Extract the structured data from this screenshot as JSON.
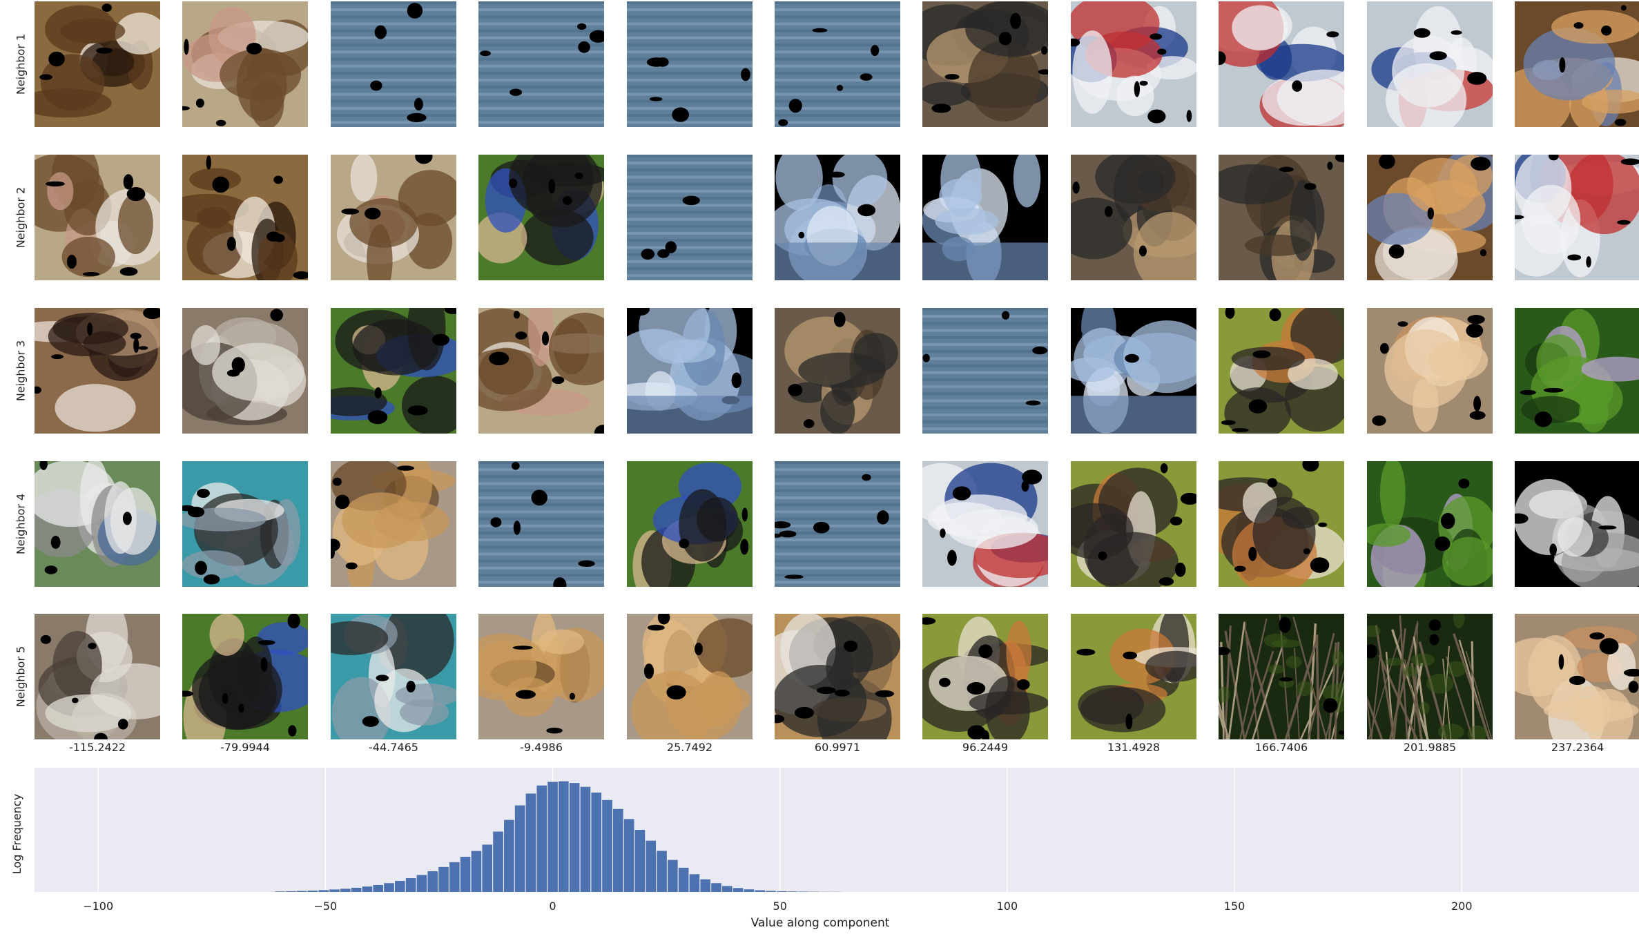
{
  "row_labels": [
    "Neighbor 1",
    "Neighbor 2",
    "Neighbor 3",
    "Neighbor 4",
    "Neighbor 5"
  ],
  "column_values": [
    "-115.2422",
    "-79.9944",
    "-44.7465",
    "-9.4986",
    "25.7492",
    "60.9971",
    "96.2449",
    "131.4928",
    "166.7406",
    "201.9885",
    "237.2364"
  ],
  "image_themes": [
    [
      "dog-brown",
      "dog-fluffy",
      "water",
      "water",
      "water",
      "water",
      "dog-dark",
      "police-car",
      "police-car",
      "police-car",
      "dog-baby"
    ],
    [
      "dog-fluffy",
      "dog-brown",
      "dog-fluffy",
      "dogs-grass",
      "water",
      "sky-mask",
      "sky-mask",
      "dog-dark",
      "dog-dark",
      "dog-baby",
      "police-car"
    ],
    [
      "dog-black",
      "alpaca",
      "dogs-grass",
      "dog-fluffy",
      "sky-mask",
      "dog-dark",
      "water",
      "sky-mask",
      "dogs-pile",
      "fox",
      "plant"
    ],
    [
      "dog-corgi",
      "dog-merle",
      "puppy-golden",
      "water",
      "dogs-grass",
      "water",
      "police-car",
      "dogs-pile",
      "dogs-pile",
      "plant",
      "van"
    ],
    [
      "alpaca",
      "dogs-grass",
      "dog-merle",
      "puppy-golden",
      "puppy-golden",
      "cat-floor",
      "dogs-pile",
      "dogs-pile",
      "branches",
      "branches",
      "fox"
    ]
  ],
  "chart_data": {
    "type": "bar",
    "xlabel": "Value along component",
    "ylabel": "Log Frequency",
    "xlim": [
      -114,
      239
    ],
    "ylim": [
      0,
      1.0
    ],
    "xticks": [
      -100,
      -50,
      0,
      50,
      100,
      150,
      200
    ],
    "grid": true,
    "background": "#eaeaf2",
    "bar_color": "#4c72b0",
    "bins": [
      {
        "x": -60.0,
        "y": 0.004
      },
      {
        "x": -57.6,
        "y": 0.006
      },
      {
        "x": -55.2,
        "y": 0.008
      },
      {
        "x": -52.8,
        "y": 0.011
      },
      {
        "x": -50.4,
        "y": 0.015
      },
      {
        "x": -48.0,
        "y": 0.02
      },
      {
        "x": -45.6,
        "y": 0.026
      },
      {
        "x": -43.2,
        "y": 0.034
      },
      {
        "x": -40.8,
        "y": 0.044
      },
      {
        "x": -38.4,
        "y": 0.056
      },
      {
        "x": -36.0,
        "y": 0.071
      },
      {
        "x": -33.6,
        "y": 0.089
      },
      {
        "x": -31.2,
        "y": 0.111
      },
      {
        "x": -28.8,
        "y": 0.137
      },
      {
        "x": -26.4,
        "y": 0.167
      },
      {
        "x": -24.0,
        "y": 0.201
      },
      {
        "x": -21.6,
        "y": 0.24
      },
      {
        "x": -19.2,
        "y": 0.283
      },
      {
        "x": -16.8,
        "y": 0.33
      },
      {
        "x": -14.4,
        "y": 0.381
      },
      {
        "x": -12.0,
        "y": 0.486
      },
      {
        "x": -9.6,
        "y": 0.58
      },
      {
        "x": -7.2,
        "y": 0.697
      },
      {
        "x": -4.8,
        "y": 0.792
      },
      {
        "x": -2.4,
        "y": 0.857
      },
      {
        "x": 0.0,
        "y": 0.886
      },
      {
        "x": 2.4,
        "y": 0.891
      },
      {
        "x": 4.8,
        "y": 0.877
      },
      {
        "x": 7.2,
        "y": 0.846
      },
      {
        "x": 9.6,
        "y": 0.8
      },
      {
        "x": 12.0,
        "y": 0.74
      },
      {
        "x": 14.4,
        "y": 0.668
      },
      {
        "x": 16.8,
        "y": 0.587
      },
      {
        "x": 19.2,
        "y": 0.5
      },
      {
        "x": 21.6,
        "y": 0.413
      },
      {
        "x": 24.0,
        "y": 0.331
      },
      {
        "x": 26.4,
        "y": 0.258
      },
      {
        "x": 28.8,
        "y": 0.195
      },
      {
        "x": 31.2,
        "y": 0.143
      },
      {
        "x": 33.6,
        "y": 0.102
      },
      {
        "x": 36.0,
        "y": 0.071
      },
      {
        "x": 38.4,
        "y": 0.048
      },
      {
        "x": 40.8,
        "y": 0.032
      },
      {
        "x": 43.2,
        "y": 0.021
      },
      {
        "x": 45.6,
        "y": 0.014
      },
      {
        "x": 48.0,
        "y": 0.009
      },
      {
        "x": 50.4,
        "y": 0.006
      },
      {
        "x": 52.8,
        "y": 0.004
      },
      {
        "x": 55.2,
        "y": 0.003
      },
      {
        "x": 57.6,
        "y": 0.002
      },
      {
        "x": 60.0,
        "y": 0.001
      },
      {
        "x": 62.4,
        "y": 0.001
      }
    ]
  }
}
